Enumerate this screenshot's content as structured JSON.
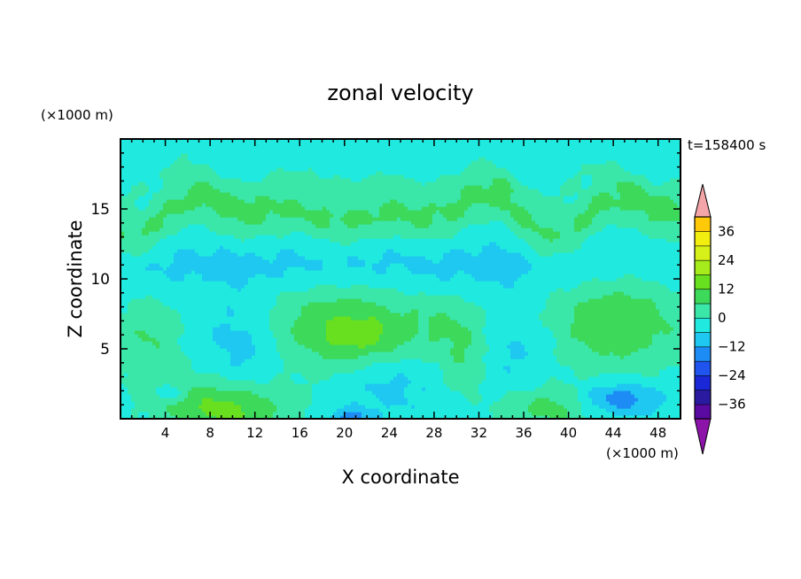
{
  "chart_data": {
    "type": "heatmap",
    "title": "zonal velocity",
    "xlabel": "X coordinate",
    "ylabel": "Z coordinate",
    "x_unit": "(×1000 m)",
    "y_unit": "(×1000 m)",
    "time_label": "t=158400 s",
    "xlim": [
      0,
      50
    ],
    "ylim": [
      0,
      20
    ],
    "x_ticks": [
      "4",
      "8",
      "12",
      "16",
      "20",
      "24",
      "28",
      "32",
      "36",
      "40",
      "44",
      "48"
    ],
    "y_ticks": [
      "5",
      "10",
      "15"
    ],
    "colorbar": {
      "tick_labels": [
        "36",
        "24",
        "12",
        "0",
        "−12",
        "−24",
        "−36"
      ],
      "tick_values": [
        36,
        24,
        12,
        0,
        -12,
        -24,
        -36
      ],
      "min": -42,
      "max": 42,
      "step": 6,
      "colors": [
        "#5a0aa0",
        "#2a1aa0",
        "#1a28d8",
        "#1f55ee",
        "#1e8cf5",
        "#1ec8f0",
        "#20eadf",
        "#3ae6a8",
        "#3cd95a",
        "#68e020",
        "#a6ec1c",
        "#d6f01a",
        "#f2ee10",
        "#ffc808",
        "#ff9a0a",
        "#ff6a10",
        "#f03018",
        "#dc1412",
        "#b80a10",
        "#f4a5a8"
      ],
      "under_color": "#8c14a8",
      "over_color": "#f4a5a8"
    },
    "background_value": -3,
    "features": [
      {
        "name": "lower-left-jet",
        "x": 9.5,
        "z": 0.5,
        "sx": 3.8,
        "sz": 1.6,
        "value": 17
      },
      {
        "name": "lower-mid-left",
        "x": 5.0,
        "z": 1.8,
        "sx": 2.5,
        "sz": 1.0,
        "value": 3
      },
      {
        "name": "left-blob",
        "x": 2.5,
        "z": 5.8,
        "sx": 2.2,
        "sz": 2.3,
        "value": 9
      },
      {
        "name": "central-blob",
        "x": 20.0,
        "z": 6.5,
        "sx": 5.5,
        "sz": 2.2,
        "value": 15
      },
      {
        "name": "central-core",
        "x": 21.5,
        "z": 6.0,
        "sx": 2.0,
        "sz": 0.8,
        "value": 6
      },
      {
        "name": "mid-blob",
        "x": 30.5,
        "z": 4.5,
        "sx": 1.6,
        "sz": 2.0,
        "value": 7
      },
      {
        "name": "mid-upper",
        "x": 29.0,
        "z": 7.0,
        "sx": 2.2,
        "sz": 1.3,
        "value": 4
      },
      {
        "name": "lower-right-jet",
        "x": 38.0,
        "z": 0.8,
        "sx": 3.0,
        "sz": 1.2,
        "value": 12
      },
      {
        "name": "right-blob",
        "x": 44.5,
        "z": 7.0,
        "sx": 4.5,
        "sz": 2.5,
        "value": 14
      },
      {
        "name": "neg-left",
        "x": 11.0,
        "z": 5.5,
        "sx": 2.5,
        "sz": 2.2,
        "value": -8
      },
      {
        "name": "neg-center",
        "x": 24.0,
        "z": 2.5,
        "sx": 3.0,
        "sz": 1.5,
        "value": -6
      },
      {
        "name": "neg-right-1",
        "x": 36.0,
        "z": 4.5,
        "sx": 2.0,
        "sz": 2.5,
        "value": -5
      },
      {
        "name": "neg-right-2",
        "x": 44.5,
        "z": 1.5,
        "sx": 2.5,
        "sz": 0.8,
        "value": -14
      },
      {
        "name": "neg-left-small",
        "x": 4.5,
        "z": 1.9,
        "sx": 0.8,
        "sz": 0.4,
        "value": -12
      },
      {
        "name": "neg-mid-small",
        "x": 20.5,
        "z": 0.2,
        "sx": 1.2,
        "sz": 0.4,
        "value": -12
      },
      {
        "name": "neg-band",
        "x": 25.0,
        "z": 11.0,
        "sx": 40.0,
        "sz": 1.3,
        "value": -5
      }
    ],
    "bands": [
      {
        "name": "upper-jet",
        "z": 14.7,
        "sz": 1.3,
        "value": 10,
        "x_mod": [
          [
            4,
            2
          ],
          [
            22,
            1.5
          ],
          [
            44,
            3
          ]
        ]
      },
      {
        "name": "upper-band-2",
        "z": 16.8,
        "sz": 0.6,
        "value": 3,
        "x_mod": [
          [
            12,
            1.5
          ],
          [
            40,
            2
          ]
        ]
      },
      {
        "name": "top-band",
        "z": 19.3,
        "sz": 0.5,
        "value": 1,
        "x_mod": []
      }
    ]
  }
}
